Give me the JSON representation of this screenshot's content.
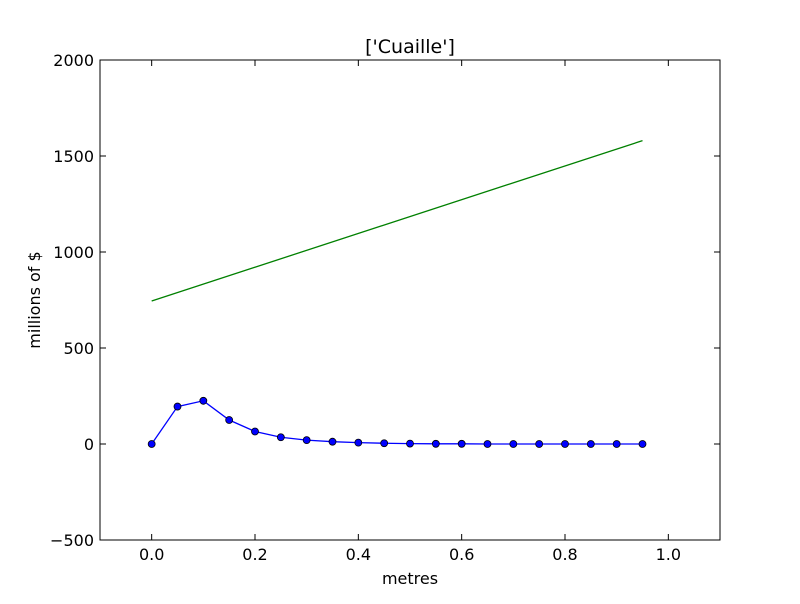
{
  "chart_data": {
    "type": "line",
    "title": "['Cuaille']",
    "xlabel": "metres",
    "ylabel": "millions of $",
    "xlim": [
      -0.1,
      1.1
    ],
    "ylim": [
      -500,
      2000
    ],
    "xticks": [
      0.0,
      0.2,
      0.4,
      0.6,
      0.8,
      1.0
    ],
    "xtick_labels": [
      "0.0",
      "0.2",
      "0.4",
      "0.6",
      "0.8",
      "1.0"
    ],
    "yticks": [
      -500,
      0,
      500,
      1000,
      1500,
      2000
    ],
    "ytick_labels": [
      "−500",
      "0",
      "500",
      "1000",
      "1500",
      "2000"
    ],
    "grid": false,
    "series": [
      {
        "color": "#0000ff",
        "marker": "circle",
        "x": [
          0.0,
          0.05,
          0.1,
          0.15,
          0.2,
          0.25,
          0.3,
          0.35,
          0.4,
          0.45,
          0.5,
          0.55,
          0.6,
          0.65,
          0.7,
          0.75,
          0.8,
          0.85,
          0.9,
          0.95
        ],
        "y": [
          0,
          195,
          225,
          125,
          65,
          35,
          20,
          12,
          7,
          4,
          2,
          1,
          1,
          0,
          0,
          0,
          0,
          0,
          0,
          0
        ]
      },
      {
        "color": "#008000",
        "marker": "none",
        "x": [
          0.0,
          0.95
        ],
        "y": [
          745,
          1580
        ]
      }
    ]
  }
}
